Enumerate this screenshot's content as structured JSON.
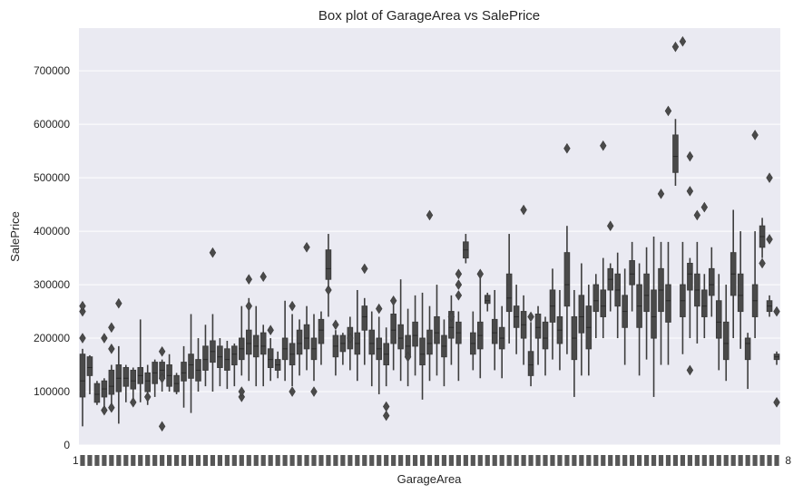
{
  "chart_data": {
    "type": "box",
    "title": "Box plot of GarageArea vs SalePrice",
    "xlabel": "GarageArea",
    "ylabel": "SalePrice",
    "ylim": [
      0,
      780000
    ],
    "yticks": [
      0,
      100000,
      200000,
      300000,
      400000,
      500000,
      600000,
      700000
    ],
    "ytick_labels": [
      "0",
      "100000",
      "200000",
      "300000",
      "400000",
      "500000",
      "600000",
      "700000"
    ],
    "xticks_first_label": "1",
    "xticks_last_label": "8",
    "x_categories_note": "",
    "grid": true,
    "boxes": [
      {
        "q1": 90000,
        "median": 120000,
        "q3": 170000,
        "whislo": 35000,
        "whishi": 180000,
        "outliers": [
          200000,
          250000,
          260000
        ]
      },
      {
        "q1": 130000,
        "median": 145000,
        "q3": 165000,
        "whislo": 95000,
        "whishi": 168000,
        "outliers": []
      },
      {
        "q1": 80000,
        "median": 95000,
        "q3": 115000,
        "whislo": 75000,
        "whishi": 120000,
        "outliers": []
      },
      {
        "q1": 90000,
        "median": 105000,
        "q3": 120000,
        "whislo": 70000,
        "whishi": 125000,
        "outliers": [
          65000,
          200000
        ]
      },
      {
        "q1": 95000,
        "median": 110000,
        "q3": 140000,
        "whislo": 70000,
        "whishi": 150000,
        "outliers": [
          220000,
          180000,
          70000
        ]
      },
      {
        "q1": 100000,
        "median": 125000,
        "q3": 150000,
        "whislo": 40000,
        "whishi": 185000,
        "outliers": [
          265000
        ]
      },
      {
        "q1": 110000,
        "median": 125000,
        "q3": 145000,
        "whislo": 80000,
        "whishi": 150000,
        "outliers": []
      },
      {
        "q1": 105000,
        "median": 120000,
        "q3": 140000,
        "whislo": 75000,
        "whishi": 145000,
        "outliers": [
          80000
        ]
      },
      {
        "q1": 115000,
        "median": 130000,
        "q3": 145000,
        "whislo": 80000,
        "whishi": 235000,
        "outliers": []
      },
      {
        "q1": 100000,
        "median": 120000,
        "q3": 135000,
        "whislo": 75000,
        "whishi": 150000,
        "outliers": [
          90000
        ]
      },
      {
        "q1": 115000,
        "median": 135000,
        "q3": 155000,
        "whislo": 90000,
        "whishi": 160000,
        "outliers": []
      },
      {
        "q1": 125000,
        "median": 140000,
        "q3": 155000,
        "whislo": 100000,
        "whishi": 160000,
        "outliers": [
          35000,
          175000,
          125000
        ]
      },
      {
        "q1": 110000,
        "median": 130000,
        "q3": 150000,
        "whislo": 100000,
        "whishi": 170000,
        "outliers": []
      },
      {
        "q1": 100000,
        "median": 115000,
        "q3": 130000,
        "whislo": 95000,
        "whishi": 135000,
        "outliers": []
      },
      {
        "q1": 120000,
        "median": 135000,
        "q3": 155000,
        "whislo": 70000,
        "whishi": 185000,
        "outliers": []
      },
      {
        "q1": 125000,
        "median": 150000,
        "q3": 170000,
        "whislo": 60000,
        "whishi": 245000,
        "outliers": []
      },
      {
        "q1": 120000,
        "median": 140000,
        "q3": 160000,
        "whislo": 100000,
        "whishi": 200000,
        "outliers": []
      },
      {
        "q1": 140000,
        "median": 160000,
        "q3": 185000,
        "whislo": 110000,
        "whishi": 225000,
        "outliers": []
      },
      {
        "q1": 155000,
        "median": 175000,
        "q3": 195000,
        "whislo": 100000,
        "whishi": 245000,
        "outliers": [
          360000
        ]
      },
      {
        "q1": 145000,
        "median": 165000,
        "q3": 185000,
        "whislo": 110000,
        "whishi": 200000,
        "outliers": []
      },
      {
        "q1": 140000,
        "median": 160000,
        "q3": 180000,
        "whislo": 105000,
        "whishi": 195000,
        "outliers": []
      },
      {
        "q1": 150000,
        "median": 170000,
        "q3": 185000,
        "whislo": 110000,
        "whishi": 190000,
        "outliers": []
      },
      {
        "q1": 160000,
        "median": 180000,
        "q3": 200000,
        "whislo": 130000,
        "whishi": 260000,
        "outliers": [
          90000,
          100000
        ]
      },
      {
        "q1": 170000,
        "median": 190000,
        "q3": 215000,
        "whislo": 120000,
        "whishi": 275000,
        "outliers": [
          310000,
          260000
        ]
      },
      {
        "q1": 165000,
        "median": 185000,
        "q3": 205000,
        "whislo": 110000,
        "whishi": 260000,
        "outliers": []
      },
      {
        "q1": 170000,
        "median": 185000,
        "q3": 210000,
        "whislo": 110000,
        "whishi": 225000,
        "outliers": [
          315000
        ]
      },
      {
        "q1": 145000,
        "median": 160000,
        "q3": 180000,
        "whislo": 120000,
        "whishi": 200000,
        "outliers": [
          215000
        ]
      },
      {
        "q1": 140000,
        "median": 150000,
        "q3": 160000,
        "whislo": 125000,
        "whishi": 175000,
        "outliers": []
      },
      {
        "q1": 160000,
        "median": 180000,
        "q3": 200000,
        "whislo": 120000,
        "whishi": 270000,
        "outliers": []
      },
      {
        "q1": 150000,
        "median": 170000,
        "q3": 190000,
        "whislo": 110000,
        "whishi": 245000,
        "outliers": [
          100000,
          260000
        ]
      },
      {
        "q1": 170000,
        "median": 190000,
        "q3": 215000,
        "whislo": 130000,
        "whishi": 235000,
        "outliers": []
      },
      {
        "q1": 180000,
        "median": 200000,
        "q3": 225000,
        "whislo": 140000,
        "whishi": 260000,
        "outliers": [
          370000
        ]
      },
      {
        "q1": 160000,
        "median": 180000,
        "q3": 200000,
        "whislo": 120000,
        "whishi": 245000,
        "outliers": [
          100000
        ]
      },
      {
        "q1": 190000,
        "median": 215000,
        "q3": 235000,
        "whislo": 150000,
        "whishi": 250000,
        "outliers": []
      },
      {
        "q1": 310000,
        "median": 330000,
        "q3": 365000,
        "whislo": 240000,
        "whishi": 395000,
        "outliers": [
          290000
        ]
      },
      {
        "q1": 165000,
        "median": 185000,
        "q3": 205000,
        "whislo": 130000,
        "whishi": 215000,
        "outliers": [
          225000
        ]
      },
      {
        "q1": 175000,
        "median": 190000,
        "q3": 205000,
        "whislo": 150000,
        "whishi": 210000,
        "outliers": []
      },
      {
        "q1": 180000,
        "median": 200000,
        "q3": 220000,
        "whislo": 140000,
        "whishi": 240000,
        "outliers": [
          200000
        ]
      },
      {
        "q1": 170000,
        "median": 190000,
        "q3": 210000,
        "whislo": 120000,
        "whishi": 290000,
        "outliers": []
      },
      {
        "q1": 215000,
        "median": 240000,
        "q3": 260000,
        "whislo": 150000,
        "whishi": 275000,
        "outliers": [
          330000
        ]
      },
      {
        "q1": 170000,
        "median": 190000,
        "q3": 215000,
        "whislo": 110000,
        "whishi": 250000,
        "outliers": []
      },
      {
        "q1": 160000,
        "median": 180000,
        "q3": 200000,
        "whislo": 95000,
        "whishi": 240000,
        "outliers": [
          255000
        ]
      },
      {
        "q1": 150000,
        "median": 170000,
        "q3": 190000,
        "whislo": 110000,
        "whishi": 220000,
        "outliers": [
          55000,
          72000
        ]
      },
      {
        "q1": 190000,
        "median": 215000,
        "q3": 245000,
        "whislo": 140000,
        "whishi": 275000,
        "outliers": [
          270000
        ]
      },
      {
        "q1": 180000,
        "median": 200000,
        "q3": 225000,
        "whislo": 120000,
        "whishi": 310000,
        "outliers": []
      },
      {
        "q1": 165000,
        "median": 185000,
        "q3": 205000,
        "whislo": 110000,
        "whishi": 255000,
        "outliers": [
          165000
        ]
      },
      {
        "q1": 185000,
        "median": 205000,
        "q3": 230000,
        "whislo": 130000,
        "whishi": 280000,
        "outliers": []
      },
      {
        "q1": 150000,
        "median": 170000,
        "q3": 200000,
        "whislo": 85000,
        "whishi": 285000,
        "outliers": []
      },
      {
        "q1": 170000,
        "median": 190000,
        "q3": 215000,
        "whislo": 120000,
        "whishi": 260000,
        "outliers": [
          430000
        ]
      },
      {
        "q1": 190000,
        "median": 210000,
        "q3": 240000,
        "whislo": 130000,
        "whishi": 300000,
        "outliers": []
      },
      {
        "q1": 165000,
        "median": 185000,
        "q3": 205000,
        "whislo": 110000,
        "whishi": 235000,
        "outliers": []
      },
      {
        "q1": 200000,
        "median": 220000,
        "q3": 250000,
        "whislo": 150000,
        "whishi": 280000,
        "outliers": [
          240000
        ]
      },
      {
        "q1": 190000,
        "median": 210000,
        "q3": 230000,
        "whislo": 120000,
        "whishi": 250000,
        "outliers": [
          280000,
          300000,
          320000
        ]
      },
      {
        "q1": 350000,
        "median": 365000,
        "q3": 380000,
        "whislo": 340000,
        "whishi": 395000,
        "outliers": []
      },
      {
        "q1": 170000,
        "median": 190000,
        "q3": 210000,
        "whislo": 140000,
        "whishi": 250000,
        "outliers": []
      },
      {
        "q1": 180000,
        "median": 205000,
        "q3": 230000,
        "whislo": 125000,
        "whishi": 320000,
        "outliers": [
          320000
        ]
      },
      {
        "q1": 265000,
        "median": 270000,
        "q3": 280000,
        "whislo": 250000,
        "whishi": 285000,
        "outliers": []
      },
      {
        "q1": 190000,
        "median": 210000,
        "q3": 235000,
        "whislo": 140000,
        "whishi": 290000,
        "outliers": []
      },
      {
        "q1": 180000,
        "median": 200000,
        "q3": 220000,
        "whislo": 125000,
        "whishi": 260000,
        "outliers": []
      },
      {
        "q1": 250000,
        "median": 275000,
        "q3": 320000,
        "whislo": 190000,
        "whishi": 395000,
        "outliers": []
      },
      {
        "q1": 220000,
        "median": 240000,
        "q3": 260000,
        "whislo": 170000,
        "whishi": 300000,
        "outliers": []
      },
      {
        "q1": 200000,
        "median": 225000,
        "q3": 250000,
        "whislo": 150000,
        "whishi": 280000,
        "outliers": [
          440000
        ]
      },
      {
        "q1": 130000,
        "median": 150000,
        "q3": 175000,
        "whislo": 110000,
        "whishi": 230000,
        "outliers": [
          240000
        ]
      },
      {
        "q1": 200000,
        "median": 220000,
        "q3": 245000,
        "whislo": 150000,
        "whishi": 260000,
        "outliers": []
      },
      {
        "q1": 180000,
        "median": 200000,
        "q3": 230000,
        "whislo": 130000,
        "whishi": 240000,
        "outliers": []
      },
      {
        "q1": 230000,
        "median": 260000,
        "q3": 290000,
        "whislo": 160000,
        "whishi": 330000,
        "outliers": []
      },
      {
        "q1": 190000,
        "median": 215000,
        "q3": 240000,
        "whislo": 140000,
        "whishi": 290000,
        "outliers": []
      },
      {
        "q1": 260000,
        "median": 300000,
        "q3": 360000,
        "whislo": 170000,
        "whishi": 410000,
        "outliers": [
          555000
        ]
      },
      {
        "q1": 160000,
        "median": 200000,
        "q3": 240000,
        "whislo": 90000,
        "whishi": 290000,
        "outliers": []
      },
      {
        "q1": 210000,
        "median": 240000,
        "q3": 280000,
        "whislo": 130000,
        "whishi": 340000,
        "outliers": []
      },
      {
        "q1": 180000,
        "median": 220000,
        "q3": 260000,
        "whislo": 130000,
        "whishi": 300000,
        "outliers": []
      },
      {
        "q1": 250000,
        "median": 270000,
        "q3": 300000,
        "whislo": 200000,
        "whishi": 320000,
        "outliers": []
      },
      {
        "q1": 240000,
        "median": 260000,
        "q3": 290000,
        "whislo": 200000,
        "whishi": 350000,
        "outliers": [
          560000
        ]
      },
      {
        "q1": 290000,
        "median": 310000,
        "q3": 330000,
        "whislo": 250000,
        "whishi": 340000,
        "outliers": [
          410000
        ]
      },
      {
        "q1": 260000,
        "median": 290000,
        "q3": 320000,
        "whislo": 200000,
        "whishi": 360000,
        "outliers": []
      },
      {
        "q1": 220000,
        "median": 250000,
        "q3": 280000,
        "whislo": 150000,
        "whishi": 330000,
        "outliers": []
      },
      {
        "q1": 300000,
        "median": 320000,
        "q3": 345000,
        "whislo": 250000,
        "whishi": 380000,
        "outliers": []
      },
      {
        "q1": 220000,
        "median": 260000,
        "q3": 300000,
        "whislo": 130000,
        "whishi": 340000,
        "outliers": []
      },
      {
        "q1": 250000,
        "median": 280000,
        "q3": 320000,
        "whislo": 160000,
        "whishi": 370000,
        "outliers": []
      },
      {
        "q1": 200000,
        "median": 240000,
        "q3": 290000,
        "whislo": 90000,
        "whishi": 390000,
        "outliers": []
      },
      {
        "q1": 250000,
        "median": 290000,
        "q3": 330000,
        "whislo": 150000,
        "whishi": 380000,
        "outliers": [
          470000
        ]
      },
      {
        "q1": 230000,
        "median": 270000,
        "q3": 300000,
        "whislo": 150000,
        "whishi": 380000,
        "outliers": [
          625000
        ]
      },
      {
        "q1": 510000,
        "median": 540000,
        "q3": 580000,
        "whislo": 485000,
        "whishi": 610000,
        "outliers": [
          745000
        ]
      },
      {
        "q1": 240000,
        "median": 270000,
        "q3": 300000,
        "whislo": 170000,
        "whishi": 380000,
        "outliers": [
          755000
        ]
      },
      {
        "q1": 290000,
        "median": 320000,
        "q3": 340000,
        "whislo": 200000,
        "whishi": 350000,
        "outliers": [
          475000,
          140000,
          540000
        ]
      },
      {
        "q1": 260000,
        "median": 290000,
        "q3": 320000,
        "whislo": 190000,
        "whishi": 380000,
        "outliers": [
          430000
        ]
      },
      {
        "q1": 240000,
        "median": 260000,
        "q3": 290000,
        "whislo": 200000,
        "whishi": 320000,
        "outliers": [
          445000
        ]
      },
      {
        "q1": 280000,
        "median": 300000,
        "q3": 330000,
        "whislo": 240000,
        "whishi": 370000,
        "outliers": []
      },
      {
        "q1": 200000,
        "median": 230000,
        "q3": 270000,
        "whislo": 140000,
        "whishi": 320000,
        "outliers": []
      },
      {
        "q1": 160000,
        "median": 190000,
        "q3": 230000,
        "whislo": 120000,
        "whishi": 300000,
        "outliers": []
      },
      {
        "q1": 280000,
        "median": 320000,
        "q3": 360000,
        "whislo": 200000,
        "whishi": 440000,
        "outliers": []
      },
      {
        "q1": 250000,
        "median": 280000,
        "q3": 320000,
        "whislo": 180000,
        "whishi": 400000,
        "outliers": []
      },
      {
        "q1": 160000,
        "median": 190000,
        "q3": 200000,
        "whislo": 105000,
        "whishi": 210000,
        "outliers": []
      },
      {
        "q1": 240000,
        "median": 270000,
        "q3": 300000,
        "whislo": 200000,
        "whishi": 400000,
        "outliers": [
          580000
        ]
      },
      {
        "q1": 370000,
        "median": 390000,
        "q3": 410000,
        "whislo": 350000,
        "whishi": 425000,
        "outliers": [
          340000
        ]
      },
      {
        "q1": 250000,
        "median": 260000,
        "q3": 270000,
        "whislo": 240000,
        "whishi": 280000,
        "outliers": [
          500000,
          385000
        ]
      },
      {
        "q1": 160000,
        "median": 165000,
        "q3": 170000,
        "whislo": 150000,
        "whishi": 175000,
        "outliers": [
          80000,
          250000
        ]
      }
    ]
  }
}
